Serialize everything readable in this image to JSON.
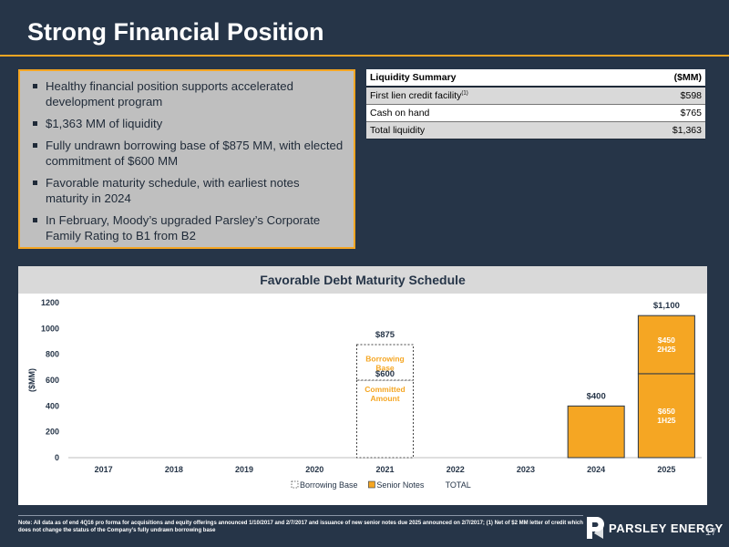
{
  "slide": {
    "title": "Strong Financial Position",
    "page_number": "17",
    "company": "PARSLEY ENERGY"
  },
  "bullets": [
    "Healthy financial position supports accelerated development program",
    "$1,363 MM of liquidity",
    "Fully undrawn borrowing base of $875 MM, with elected commitment of $600 MM",
    "Favorable maturity schedule, with earliest notes maturity in 2024",
    "In February, Moody’s upgraded Parsley’s Corporate Family Rating to B1 from B2"
  ],
  "liquidity_table": {
    "header": [
      "Liquidity Summary",
      "($MM)"
    ],
    "rows": [
      {
        "label": "First lien credit facility",
        "sup": "(1)",
        "value": "$598"
      },
      {
        "label": "Cash on hand",
        "sup": "",
        "value": "$765"
      },
      {
        "label": "Total liquidity",
        "sup": "",
        "value": "$1,363"
      }
    ]
  },
  "chart_data": {
    "type": "bar",
    "title": "Favorable Debt Maturity Schedule",
    "ylabel": "($MM)",
    "ylim": [
      0,
      1200
    ],
    "yticks": [
      0,
      200,
      400,
      600,
      800,
      1000,
      1200
    ],
    "categories": [
      "2017",
      "2018",
      "2019",
      "2020",
      "2021",
      "2022",
      "2023",
      "2024",
      "2025"
    ],
    "series": [
      {
        "name": "Borrowing Base",
        "values": [
          0,
          0,
          0,
          0,
          875,
          0,
          0,
          0,
          0
        ],
        "style": "dashed-outline"
      },
      {
        "name": "Senior Notes",
        "values": [
          0,
          0,
          0,
          0,
          0,
          0,
          0,
          400,
          1100
        ],
        "color": "#f5a623"
      },
      {
        "name": "TOTAL",
        "values": [
          null,
          null,
          null,
          null,
          null,
          null,
          null,
          null,
          null
        ]
      }
    ],
    "segments": [
      {
        "category": "2021",
        "from": 0,
        "to": 600,
        "label": [
          "Committed",
          "Amount"
        ],
        "style": "dashed"
      },
      {
        "category": "2021",
        "from": 600,
        "to": 875,
        "label": [
          "Borrowing",
          "Base"
        ],
        "style": "dashed"
      },
      {
        "category": "2025",
        "from": 0,
        "to": 650,
        "label": [
          "$650",
          "1H25"
        ],
        "style": "solid"
      },
      {
        "category": "2025",
        "from": 650,
        "to": 1100,
        "label": [
          "$450",
          "2H25"
        ],
        "style": "solid"
      }
    ],
    "value_labels": [
      {
        "category": "2021",
        "value": 875,
        "text": "$875",
        "position": "above"
      },
      {
        "category": "2021",
        "value": 600,
        "text": "$600",
        "position": "inside"
      },
      {
        "category": "2024",
        "value": 400,
        "text": "$400",
        "position": "above"
      },
      {
        "category": "2025",
        "value": 1100,
        "text": "$1,100",
        "position": "above"
      }
    ],
    "legend": [
      "Borrowing Base",
      "Senior Notes",
      "TOTAL"
    ],
    "legend_position": "bottom",
    "grid": false,
    "colors": {
      "senior_notes": "#f5a623",
      "outline": "#333333",
      "accent_text": "#f5a623"
    }
  },
  "footnote": "Note: All data as of end 4Q16 pro forma for acquisitions and equity offerings announced 1/10/2017 and 2/7/2017 and issuance of new senior notes due 2025 announced on 2/7/2017; (1) Net of $2 MM letter of credit which does not change the status of the Company’s fully undrawn borrowing base"
}
